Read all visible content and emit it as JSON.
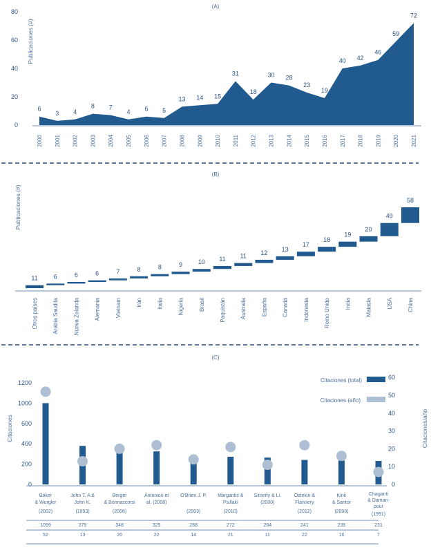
{
  "colors": {
    "primary": "#215a8f",
    "secondary": "#aebfd4",
    "axis": "#6f8fb3",
    "text": "#2e5584"
  },
  "chart_data": [
    {
      "id": "A",
      "title": "(A)",
      "type": "area",
      "xlabel": "",
      "ylabel": "Publicaciones (#)",
      "ylim": [
        0,
        80
      ],
      "yticks": [
        0,
        20,
        40,
        60,
        80
      ],
      "grid": false,
      "x": [
        "2000",
        "2001",
        "2002",
        "2003",
        "2004",
        "2005",
        "2006",
        "2007",
        "2008",
        "2009",
        "2010",
        "2011",
        "2012",
        "2013",
        "2014",
        "2015",
        "2016",
        "2017",
        "2018",
        "2019",
        "2020",
        "2021"
      ],
      "values": [
        6,
        3,
        4,
        8,
        7,
        4,
        6,
        5,
        13,
        14,
        15,
        31,
        18,
        30,
        28,
        23,
        19,
        40,
        42,
        46,
        59,
        72
      ]
    },
    {
      "id": "B",
      "title": "(B)",
      "type": "bar",
      "subtype": "waterfall",
      "xlabel": "",
      "ylabel": "Publicaciones (#)",
      "grid": false,
      "categories": [
        "Otros países",
        "Arabia Saudita",
        "Nueva Zelanda",
        "Alemania",
        "Vietnam",
        "Irán",
        "Italia",
        "Nigeria",
        "Brasil",
        "Paquistán",
        "Australia",
        "España",
        "Canadá",
        "Indonesia",
        "Reino Unido",
        "India",
        "Malasia",
        "USA",
        "China"
      ],
      "values": [
        11,
        6,
        6,
        6,
        7,
        8,
        8,
        9,
        10,
        11,
        11,
        12,
        13,
        17,
        18,
        19,
        20,
        49,
        58
      ]
    },
    {
      "id": "C",
      "title": "(C)",
      "type": "bar",
      "subtype": "bar-with-dots-dual-axis",
      "ylabel": "Citaciones",
      "y2label": "Citaciones/año",
      "yticks": [
        0,
        200,
        400,
        600,
        1000,
        1200
      ],
      "y2ticks": [
        0,
        10,
        20,
        30,
        40,
        50,
        60
      ],
      "y2lim": [
        0,
        60
      ],
      "legend": {
        "position": "top-right",
        "entries": [
          "Citaciones (total)",
          "Citaciones (año)"
        ]
      },
      "categories": [
        [
          "Baker",
          "& Wurgler",
          "(2002)"
        ],
        [
          "John T. A &",
          "John K.",
          "(1993)"
        ],
        [
          "Berger",
          "& Bonnaccorsi",
          "(2006)"
        ],
        [
          "Antoniou et",
          "al. (2008)",
          ""
        ],
        [
          "O'Brien J. P.",
          "",
          "(2003)"
        ],
        [
          "Margaritis &",
          "Psillaki",
          "(2010)"
        ],
        [
          "Simerly & Li.",
          "(2000)",
          ""
        ],
        [
          "Oztekin &",
          "Flannery",
          "(2012)"
        ],
        [
          "Kink",
          "& Santor",
          "(2008)"
        ],
        [
          "Chaganti",
          "& Daman-",
          "pour",
          "(1991)"
        ]
      ],
      "series": [
        {
          "name": "Citaciones (total)",
          "axis": "left",
          "values": [
            1099,
            379,
            348,
            325,
            288,
            272,
            264,
            241,
            235,
            231
          ]
        },
        {
          "name": "Citaciones (año)",
          "axis": "right",
          "values": [
            52,
            13,
            20,
            22,
            14,
            21,
            11,
            22,
            16,
            7
          ]
        }
      ]
    }
  ]
}
